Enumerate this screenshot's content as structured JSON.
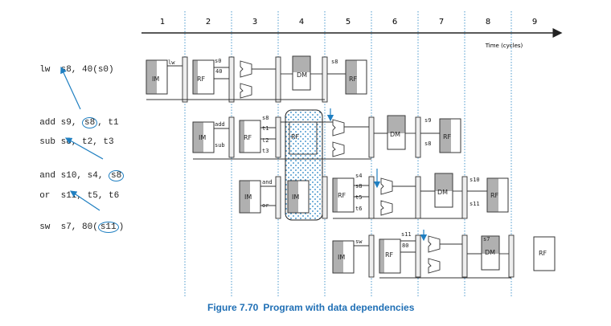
{
  "cycle_numbers": [
    "1",
    "2",
    "3",
    "4",
    "5",
    "6",
    "7",
    "8",
    "9"
  ],
  "time_label": "Time (cycles)",
  "instructions": [
    {
      "op": "lw",
      "a": "s8,",
      "b": "40(s0)",
      "hl": []
    },
    {
      "op": "add",
      "a": "s9,",
      "b": "s8",
      "c": ", t1",
      "hl": [
        "b"
      ]
    },
    {
      "op": "sub",
      "a": "s8,",
      "b": "t2,",
      "c": " t3",
      "hl": []
    },
    {
      "op": "and",
      "a": "s10,",
      "b": "s4,",
      "c": "s8",
      "hl": [
        "c"
      ]
    },
    {
      "op": "or",
      "a": "s11,",
      "b": "t5,",
      "c": " t6",
      "hl": []
    },
    {
      "op": "sw",
      "a": "s7,",
      "b": "80(",
      "c": "s11",
      "d": ")",
      "hl": [
        "c"
      ]
    }
  ],
  "text": {
    "i0_op": "lw",
    "i0_args": "s8, 40(s0)",
    "i1_op": "add",
    "i1_pre": "s9, ",
    "i1_reg": "s8",
    "i1_post": ", t1",
    "i2_op": "sub",
    "i2_args": "s8, t2, t3",
    "i3_op": "and",
    "i3_pre": "s10, s4, ",
    "i3_reg": "s8",
    "i4_op": "or",
    "i4_args": "s11, t5, t6",
    "i5_op": "sw",
    "i5_pre": "s7, 80(",
    "i5_reg": "s11",
    "i5_post": ")"
  },
  "stages": {
    "im": "IM",
    "rf": "RF",
    "dm": "DM"
  },
  "pipe_labels": {
    "r0": {
      "op": "lw",
      "s1": "s0",
      "s2": "40",
      "wb": "s8"
    },
    "r1": {
      "op": "add",
      "s1": "s8",
      "s2": "t1",
      "wb": "s9",
      "wb2": "s8"
    },
    "r2": {
      "op": "sub",
      "s1": "t2",
      "s2": "t3",
      "wb": "s8"
    },
    "r3": {
      "op": "and",
      "s1": "s4",
      "s2": "s8",
      "wb": "s10"
    },
    "r4": {
      "op": "or",
      "s1": "t5",
      "s2": "t6",
      "wb": "s11"
    },
    "r5": {
      "op": "sw",
      "s1": "s11",
      "s2": "80",
      "wb": "s7"
    },
    "extra": {
      "op_and": "and",
      "op_or": "or",
      "r3_s1": "s4",
      "r3_wb": "s10",
      "r4_wb": "s11",
      "r2_s": "s8",
      "r2_t1": "t1",
      "r2_t2": "t2",
      "r2_t3": "t3",
      "r2_or": "or"
    }
  },
  "caption": {
    "number": "Figure 7.70",
    "title": "Program with data dependencies"
  },
  "colors": {
    "accent": "#1f7fc1",
    "caption": "#1f6fb5",
    "shade": "#b0b0b0"
  }
}
